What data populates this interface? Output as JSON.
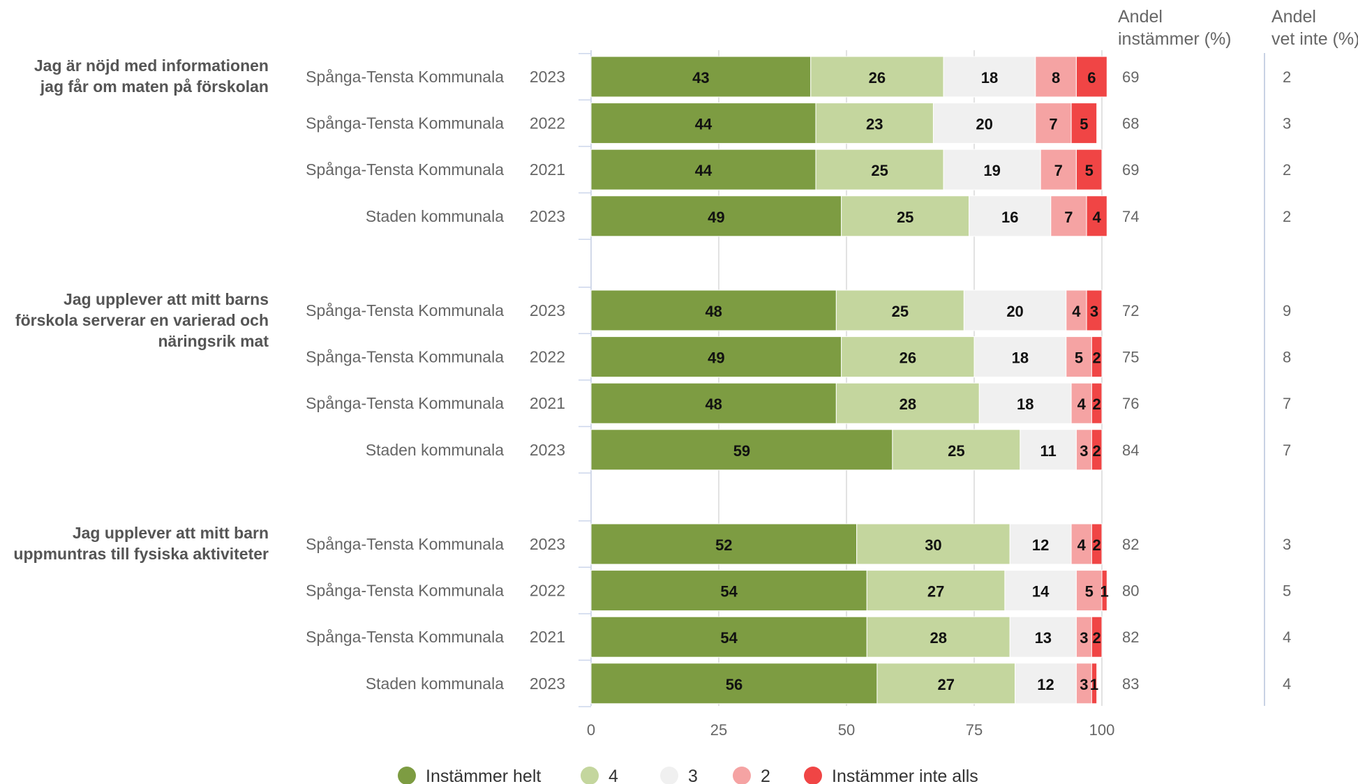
{
  "chart_data": {
    "type": "bar",
    "orientation": "horizontal",
    "stacked": true,
    "xlim": [
      0,
      100
    ],
    "x_ticks": [
      "0",
      "25",
      "50",
      "75",
      "100"
    ],
    "grid": true,
    "legend_position": "bottom",
    "side_columns": {
      "agree": {
        "header": [
          "Andel",
          "instämmer (%)"
        ]
      },
      "dontknow": {
        "header": [
          "Andel",
          "vet inte (%)"
        ]
      }
    },
    "series": [
      {
        "name": "Instämmer helt",
        "color": "#7d9c42"
      },
      {
        "name": "4",
        "color": "#c4d69e"
      },
      {
        "name": "3",
        "color": "#f0f0f0"
      },
      {
        "name": "2",
        "color": "#f5a3a3"
      },
      {
        "name": "Instämmer inte alls",
        "color": "#f04545"
      }
    ],
    "questions": [
      {
        "lines": [
          "Jag är nöjd med informationen",
          "jag får om maten på förskolan"
        ],
        "rows": [
          {
            "group": "Spånga-Tensta Kommunala",
            "year": "2023",
            "values": [
              43,
              26,
              18,
              8,
              6
            ],
            "agree": "69",
            "dontknow": "2"
          },
          {
            "group": "Spånga-Tensta Kommunala",
            "year": "2022",
            "values": [
              44,
              23,
              20,
              7,
              5
            ],
            "agree": "68",
            "dontknow": "3"
          },
          {
            "group": "Spånga-Tensta Kommunala",
            "year": "2021",
            "values": [
              44,
              25,
              19,
              7,
              5
            ],
            "agree": "69",
            "dontknow": "2"
          },
          {
            "group": "Staden kommunala",
            "year": "2023",
            "values": [
              49,
              25,
              16,
              7,
              4
            ],
            "agree": "74",
            "dontknow": "2"
          }
        ]
      },
      {
        "lines": [
          "Jag upplever att mitt barns",
          "förskola serverar en varierad och",
          "näringsrik mat"
        ],
        "rows": [
          {
            "group": "Spånga-Tensta Kommunala",
            "year": "2023",
            "values": [
              48,
              25,
              20,
              4,
              3
            ],
            "agree": "72",
            "dontknow": "9"
          },
          {
            "group": "Spånga-Tensta Kommunala",
            "year": "2022",
            "values": [
              49,
              26,
              18,
              5,
              2
            ],
            "agree": "75",
            "dontknow": "8"
          },
          {
            "group": "Spånga-Tensta Kommunala",
            "year": "2021",
            "values": [
              48,
              28,
              18,
              4,
              2
            ],
            "agree": "76",
            "dontknow": "7"
          },
          {
            "group": "Staden kommunala",
            "year": "2023",
            "values": [
              59,
              25,
              11,
              3,
              2
            ],
            "agree": "84",
            "dontknow": "7"
          }
        ]
      },
      {
        "lines": [
          "Jag upplever att mitt barn",
          "uppmuntras till fysiska aktiviteter"
        ],
        "rows": [
          {
            "group": "Spånga-Tensta Kommunala",
            "year": "2023",
            "values": [
              52,
              30,
              12,
              4,
              2
            ],
            "agree": "82",
            "dontknow": "3"
          },
          {
            "group": "Spånga-Tensta Kommunala",
            "year": "2022",
            "values": [
              54,
              27,
              14,
              5,
              1
            ],
            "agree": "80",
            "dontknow": "5"
          },
          {
            "group": "Spånga-Tensta Kommunala",
            "year": "2021",
            "values": [
              54,
              28,
              13,
              3,
              2
            ],
            "agree": "82",
            "dontknow": "4"
          },
          {
            "group": "Staden kommunala",
            "year": "2023",
            "values": [
              56,
              27,
              12,
              3,
              1
            ],
            "agree": "83",
            "dontknow": "4"
          }
        ]
      }
    ]
  }
}
